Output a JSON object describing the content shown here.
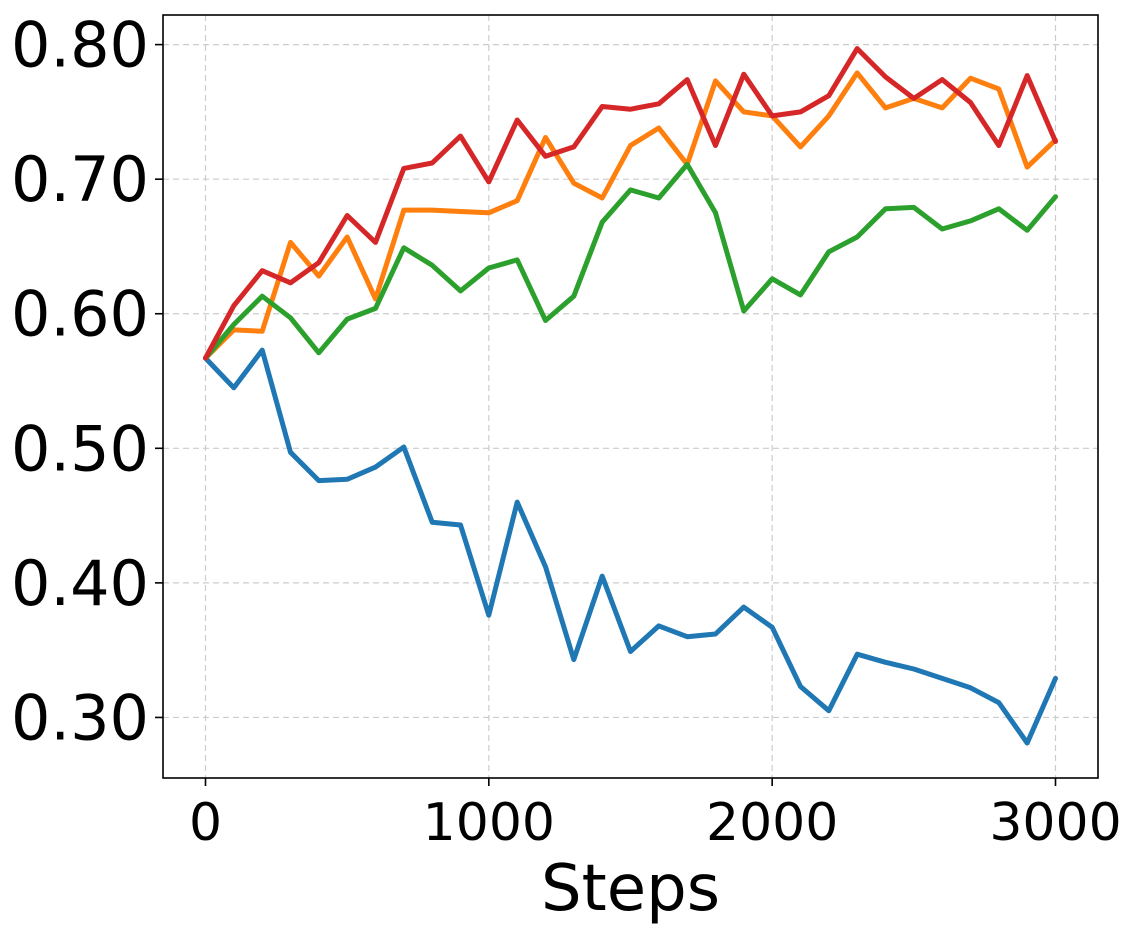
{
  "chart_data": {
    "type": "line",
    "title": "",
    "xlabel": "Steps",
    "ylabel": "",
    "xlim": [
      -150,
      3150
    ],
    "ylim": [
      0.255,
      0.822
    ],
    "grid": true,
    "x_ticks": [
      0,
      1000,
      2000,
      3000
    ],
    "x_tick_labels": [
      "0",
      "1000",
      "2000",
      "3000"
    ],
    "y_ticks": [
      0.3,
      0.4,
      0.5,
      0.6,
      0.7,
      0.8
    ],
    "y_tick_labels": [
      "0.30",
      "0.40",
      "0.50",
      "0.60",
      "0.70",
      "0.80"
    ],
    "x": [
      0,
      100,
      200,
      300,
      400,
      500,
      600,
      700,
      800,
      900,
      1000,
      1100,
      1200,
      1300,
      1400,
      1500,
      1600,
      1700,
      1800,
      1900,
      2000,
      2100,
      2200,
      2300,
      2400,
      2500,
      2600,
      2700,
      2800,
      2900,
      3000
    ],
    "series": [
      {
        "color": "#1f77b4",
        "values": [
          0.567,
          0.545,
          0.573,
          0.497,
          0.476,
          0.477,
          0.486,
          0.501,
          0.445,
          0.443,
          0.376,
          0.46,
          0.412,
          0.343,
          0.405,
          0.349,
          0.368,
          0.36,
          0.362,
          0.382,
          0.367,
          0.323,
          0.305,
          0.347,
          0.341,
          0.336,
          0.329,
          0.322,
          0.311,
          0.281,
          0.329
        ]
      },
      {
        "color": "#ff7f0e",
        "values": [
          0.567,
          0.588,
          0.587,
          0.653,
          0.628,
          0.657,
          0.611,
          0.677,
          0.677,
          0.676,
          0.675,
          0.684,
          0.731,
          0.697,
          0.686,
          0.725,
          0.738,
          0.711,
          0.773,
          0.75,
          0.747,
          0.724,
          0.747,
          0.779,
          0.753,
          0.76,
          0.753,
          0.775,
          0.767,
          0.709,
          0.729
        ]
      },
      {
        "color": "#2ca02c",
        "values": [
          0.567,
          0.592,
          0.613,
          0.597,
          0.571,
          0.596,
          0.604,
          0.649,
          0.636,
          0.617,
          0.634,
          0.64,
          0.595,
          0.613,
          0.668,
          0.692,
          0.686,
          0.711,
          0.675,
          0.602,
          0.626,
          0.614,
          0.646,
          0.657,
          0.678,
          0.679,
          0.663,
          0.669,
          0.678,
          0.662,
          0.687
        ]
      },
      {
        "color": "#d62728",
        "values": [
          0.567,
          0.606,
          0.632,
          0.623,
          0.638,
          0.673,
          0.653,
          0.708,
          0.712,
          0.732,
          0.698,
          0.744,
          0.717,
          0.724,
          0.754,
          0.752,
          0.756,
          0.774,
          0.725,
          0.778,
          0.747,
          0.75,
          0.762,
          0.797,
          0.776,
          0.76,
          0.774,
          0.757,
          0.725,
          0.777,
          0.728
        ]
      }
    ]
  }
}
